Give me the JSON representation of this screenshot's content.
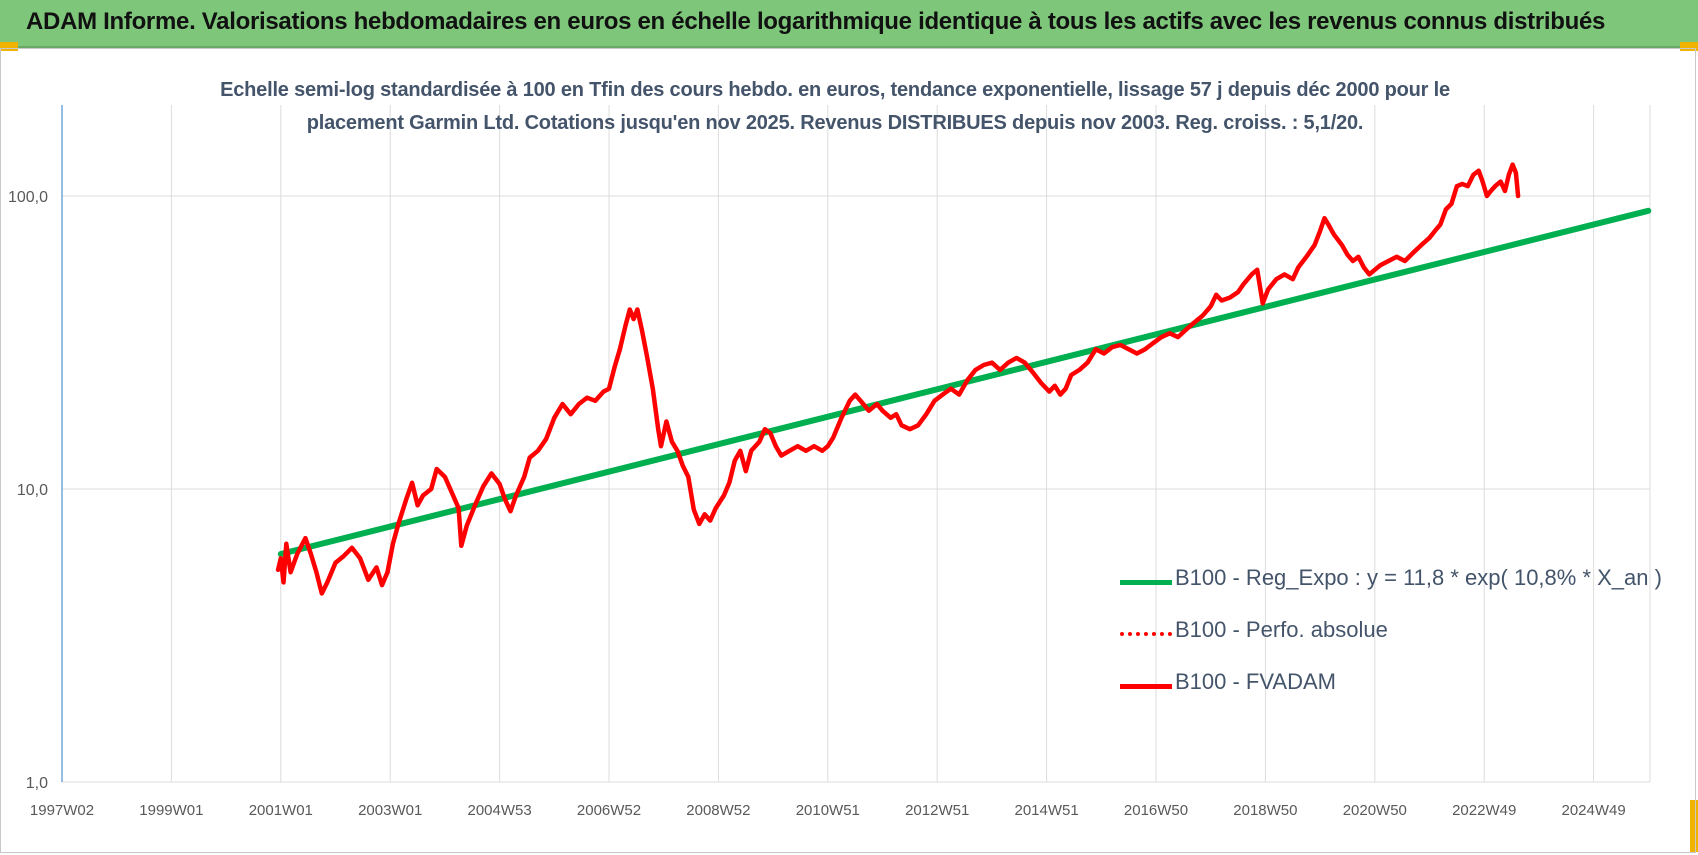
{
  "header": {
    "title": "ADAM Informe. Valorisations hebdomadaires en euros en échelle logarithmique identique à tous les actifs avec les revenus connus distribués"
  },
  "chart_data": {
    "type": "line",
    "title_lines": [
      "Echelle semi-log standardisée à 100 en Tfin des cours hebdo. en euros, tendance exponentielle, lissage 57 j depuis déc 2000 pour le",
      "placement Garmin Ltd. Cotations jusqu'en nov 2025.  Revenus DISTRIBUES depuis nov 2003.  Reg. croiss. : 5,1/20."
    ],
    "y_scale": "log",
    "ylim": [
      1,
      200
    ],
    "y_ticks": [
      "1,0",
      "10,0",
      "100,0"
    ],
    "xlim": [
      1997.0,
      2026.1
    ],
    "x_ticks": [
      {
        "label": "1997W02",
        "x": 1997.0
      },
      {
        "label": "1999W01",
        "x": 1999.0
      },
      {
        "label": "2001W01",
        "x": 2001.0
      },
      {
        "label": "2003W01",
        "x": 2003.0
      },
      {
        "label": "2004W53",
        "x": 2005.0
      },
      {
        "label": "2006W52",
        "x": 2007.0
      },
      {
        "label": "2008W52",
        "x": 2009.0
      },
      {
        "label": "2010W51",
        "x": 2011.0
      },
      {
        "label": "2012W51",
        "x": 2013.0
      },
      {
        "label": "2014W51",
        "x": 2015.0
      },
      {
        "label": "2016W50",
        "x": 2017.0
      },
      {
        "label": "2018W50",
        "x": 2019.0
      },
      {
        "label": "2020W50",
        "x": 2021.0
      },
      {
        "label": "2022W49",
        "x": 2023.0
      },
      {
        "label": "2024W49",
        "x": 2025.0
      }
    ],
    "grid": "vertical and horizontal",
    "legend_position": "bottom-right",
    "series": [
      {
        "name": "B100 - Reg_Expo : y = 11,8 * exp( 10,8% *  X_an )",
        "color": "#00b050",
        "style": "solid",
        "points": [
          [
            2001.0,
            6.0
          ],
          [
            2026.0,
            89.0
          ]
        ]
      },
      {
        "name": "B100 - Perfo. absolue",
        "color": "#ff0000",
        "style": "dotted",
        "points": []
      },
      {
        "name": "B100 - FVADAM",
        "color": "#ff0000",
        "style": "solid",
        "points": [
          [
            2000.95,
            5.3
          ],
          [
            2001.0,
            5.8
          ],
          [
            2001.05,
            4.8
          ],
          [
            2001.1,
            6.5
          ],
          [
            2001.18,
            5.2
          ],
          [
            2001.3,
            6.0
          ],
          [
            2001.45,
            6.8
          ],
          [
            2001.55,
            6.0
          ],
          [
            2001.65,
            5.2
          ],
          [
            2001.75,
            4.4
          ],
          [
            2001.85,
            4.8
          ],
          [
            2002.0,
            5.6
          ],
          [
            2002.15,
            5.9
          ],
          [
            2002.3,
            6.3
          ],
          [
            2002.45,
            5.8
          ],
          [
            2002.6,
            4.9
          ],
          [
            2002.75,
            5.4
          ],
          [
            2002.85,
            4.7
          ],
          [
            2002.95,
            5.2
          ],
          [
            2003.05,
            6.5
          ],
          [
            2003.15,
            7.6
          ],
          [
            2003.3,
            9.3
          ],
          [
            2003.4,
            10.5
          ],
          [
            2003.5,
            8.8
          ],
          [
            2003.6,
            9.5
          ],
          [
            2003.75,
            10.0
          ],
          [
            2003.85,
            11.7
          ],
          [
            2004.0,
            11.0
          ],
          [
            2004.15,
            9.5
          ],
          [
            2004.25,
            8.6
          ],
          [
            2004.3,
            6.4
          ],
          [
            2004.4,
            7.5
          ],
          [
            2004.55,
            8.8
          ],
          [
            2004.7,
            10.2
          ],
          [
            2004.85,
            11.3
          ],
          [
            2005.0,
            10.4
          ],
          [
            2005.1,
            9.2
          ],
          [
            2005.2,
            8.4
          ],
          [
            2005.3,
            9.5
          ],
          [
            2005.45,
            11.0
          ],
          [
            2005.55,
            12.8
          ],
          [
            2005.7,
            13.5
          ],
          [
            2005.85,
            14.8
          ],
          [
            2006.0,
            17.5
          ],
          [
            2006.15,
            19.5
          ],
          [
            2006.3,
            18.0
          ],
          [
            2006.45,
            19.5
          ],
          [
            2006.6,
            20.5
          ],
          [
            2006.75,
            20.0
          ],
          [
            2006.9,
            21.5
          ],
          [
            2007.0,
            22.0
          ],
          [
            2007.1,
            26.0
          ],
          [
            2007.2,
            30.0
          ],
          [
            2007.3,
            36.0
          ],
          [
            2007.38,
            41.0
          ],
          [
            2007.45,
            38.0
          ],
          [
            2007.52,
            41.0
          ],
          [
            2007.6,
            35.0
          ],
          [
            2007.7,
            28.0
          ],
          [
            2007.8,
            22.0
          ],
          [
            2007.9,
            16.0
          ],
          [
            2007.95,
            14.0
          ],
          [
            2008.05,
            17.0
          ],
          [
            2008.15,
            14.5
          ],
          [
            2008.25,
            13.5
          ],
          [
            2008.35,
            12.0
          ],
          [
            2008.45,
            11.0
          ],
          [
            2008.55,
            8.5
          ],
          [
            2008.65,
            7.6
          ],
          [
            2008.75,
            8.2
          ],
          [
            2008.85,
            7.8
          ],
          [
            2008.95,
            8.6
          ],
          [
            2009.1,
            9.5
          ],
          [
            2009.2,
            10.5
          ],
          [
            2009.3,
            12.5
          ],
          [
            2009.4,
            13.5
          ],
          [
            2009.5,
            11.5
          ],
          [
            2009.6,
            13.5
          ],
          [
            2009.75,
            14.5
          ],
          [
            2009.85,
            16.0
          ],
          [
            2009.95,
            15.5
          ],
          [
            2010.05,
            14.0
          ],
          [
            2010.15,
            13.0
          ],
          [
            2010.3,
            13.5
          ],
          [
            2010.45,
            14.0
          ],
          [
            2010.6,
            13.5
          ],
          [
            2010.75,
            14.0
          ],
          [
            2010.9,
            13.5
          ],
          [
            2011.0,
            14.0
          ],
          [
            2011.1,
            15.0
          ],
          [
            2011.25,
            17.5
          ],
          [
            2011.4,
            20.0
          ],
          [
            2011.5,
            21.0
          ],
          [
            2011.6,
            20.0
          ],
          [
            2011.75,
            18.5
          ],
          [
            2011.9,
            19.5
          ],
          [
            2012.0,
            18.5
          ],
          [
            2012.15,
            17.5
          ],
          [
            2012.25,
            18.0
          ],
          [
            2012.35,
            16.5
          ],
          [
            2012.5,
            16.0
          ],
          [
            2012.65,
            16.5
          ],
          [
            2012.8,
            18.0
          ],
          [
            2012.95,
            20.0
          ],
          [
            2013.1,
            21.0
          ],
          [
            2013.25,
            22.0
          ],
          [
            2013.4,
            21.0
          ],
          [
            2013.55,
            23.5
          ],
          [
            2013.7,
            25.5
          ],
          [
            2013.85,
            26.5
          ],
          [
            2014.0,
            27.0
          ],
          [
            2014.15,
            25.5
          ],
          [
            2014.3,
            27.0
          ],
          [
            2014.45,
            28.0
          ],
          [
            2014.6,
            27.0
          ],
          [
            2014.75,
            25.0
          ],
          [
            2014.9,
            23.0
          ],
          [
            2015.05,
            21.5
          ],
          [
            2015.15,
            22.5
          ],
          [
            2015.25,
            21.0
          ],
          [
            2015.35,
            22.0
          ],
          [
            2015.45,
            24.5
          ],
          [
            2015.6,
            25.5
          ],
          [
            2015.75,
            27.0
          ],
          [
            2015.9,
            30.0
          ],
          [
            2016.05,
            29.0
          ],
          [
            2016.2,
            30.5
          ],
          [
            2016.35,
            31.0
          ],
          [
            2016.5,
            30.0
          ],
          [
            2016.65,
            29.0
          ],
          [
            2016.8,
            30.0
          ],
          [
            2016.95,
            31.5
          ],
          [
            2017.1,
            33.0
          ],
          [
            2017.25,
            34.0
          ],
          [
            2017.4,
            33.0
          ],
          [
            2017.55,
            35.0
          ],
          [
            2017.7,
            37.0
          ],
          [
            2017.85,
            39.0
          ],
          [
            2018.0,
            42.0
          ],
          [
            2018.1,
            46.0
          ],
          [
            2018.2,
            44.0
          ],
          [
            2018.35,
            45.0
          ],
          [
            2018.5,
            47.0
          ],
          [
            2018.6,
            50.0
          ],
          [
            2018.75,
            54.0
          ],
          [
            2018.85,
            56.0
          ],
          [
            2018.95,
            43.0
          ],
          [
            2019.05,
            48.0
          ],
          [
            2019.2,
            52.0
          ],
          [
            2019.35,
            54.0
          ],
          [
            2019.5,
            52.0
          ],
          [
            2019.6,
            57.0
          ],
          [
            2019.75,
            62.0
          ],
          [
            2019.9,
            68.0
          ],
          [
            2020.0,
            76.0
          ],
          [
            2020.08,
            84.0
          ],
          [
            2020.15,
            80.0
          ],
          [
            2020.25,
            74.0
          ],
          [
            2020.4,
            68.0
          ],
          [
            2020.5,
            63.0
          ],
          [
            2020.6,
            60.0
          ],
          [
            2020.7,
            62.0
          ],
          [
            2020.8,
            57.0
          ],
          [
            2020.9,
            54.0
          ],
          [
            2021.0,
            56.0
          ],
          [
            2021.1,
            58.0
          ],
          [
            2021.25,
            60.0
          ],
          [
            2021.4,
            62.0
          ],
          [
            2021.55,
            60.0
          ],
          [
            2021.7,
            64.0
          ],
          [
            2021.85,
            68.0
          ],
          [
            2022.0,
            72.0
          ],
          [
            2022.1,
            76.0
          ],
          [
            2022.2,
            80.0
          ],
          [
            2022.3,
            90.0
          ],
          [
            2022.4,
            94.0
          ],
          [
            2022.5,
            108.0
          ],
          [
            2022.6,
            110.0
          ],
          [
            2022.7,
            108.0
          ],
          [
            2022.8,
            118.0
          ],
          [
            2022.9,
            122.0
          ],
          [
            2022.97,
            112.0
          ],
          [
            2023.05,
            100.0
          ],
          [
            2023.12,
            104.0
          ],
          [
            2023.2,
            108.0
          ],
          [
            2023.3,
            112.0
          ],
          [
            2023.38,
            104.0
          ],
          [
            2023.45,
            118.0
          ],
          [
            2023.52,
            128.0
          ],
          [
            2023.58,
            120.0
          ],
          [
            2023.62,
            100.0
          ]
        ]
      }
    ]
  }
}
